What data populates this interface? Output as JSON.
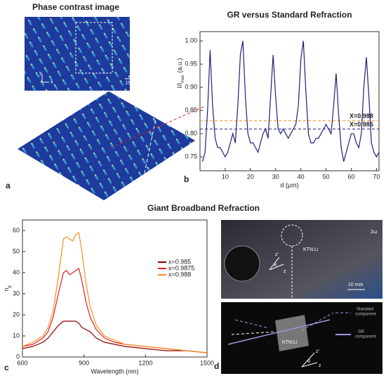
{
  "figure": {
    "panel_a": {
      "label": "a",
      "title": "Phase contrast image",
      "scale_bar": "15 μm",
      "axis_y": "y",
      "axis_x": "x"
    },
    "section_title": "Giant Broadband Refraction",
    "panel_d": {
      "label": "d",
      "sample": "KTN:Li",
      "harmonic": "2ω",
      "scale_bar": "10 mm",
      "axis_z": "z",
      "axis_zp": "z'",
      "angle": "θ",
      "standard_1": "Standard",
      "standard_2": "component",
      "gr_1": "GR",
      "gr_2": "component",
      "sample_2": "KTN:Li",
      "axis_z_2": "z",
      "axis_zp_2": "z'",
      "angle_2": "θ"
    }
  },
  "chart_data": [
    {
      "type": "line",
      "panel_label": "b",
      "title": "GR versus Standard Refraction",
      "x_label": "d (μm)",
      "y_label": "I/I",
      "y_label_sub": "max",
      "y_label_unit": "(a.u.)",
      "xlim": [
        0,
        71
      ],
      "ylim": [
        0.72,
        1.02
      ],
      "xticks": [
        10,
        20,
        30,
        40,
        50,
        60,
        70
      ],
      "yticks": [
        0.75,
        {
          "value": 0.8,
          "label": "0.80"
        },
        0.85,
        {
          "value": 0.9,
          "label": "0.90"
        },
        0.95,
        {
          "value": 1.0,
          "label": "1.00"
        }
      ],
      "x": [
        1,
        2,
        3,
        4,
        5,
        6,
        7,
        8,
        9,
        10,
        11,
        12,
        13,
        14,
        15,
        16,
        17,
        18,
        19,
        20,
        21,
        22,
        23,
        24,
        25,
        26,
        27,
        28,
        29,
        30,
        31,
        32,
        33,
        34,
        35,
        36,
        37,
        38,
        39,
        40,
        41,
        42,
        43,
        44,
        45,
        46,
        47,
        48,
        49,
        50,
        51,
        52,
        53,
        54,
        55,
        56,
        57,
        58,
        59,
        60,
        61,
        62,
        63,
        64,
        65,
        66,
        67,
        68,
        69,
        70,
        71
      ],
      "series": [
        {
          "color": "#1f1f7a",
          "values": [
            0.74,
            0.76,
            0.85,
            0.98,
            0.86,
            0.79,
            0.77,
            0.77,
            0.76,
            0.75,
            0.76,
            0.78,
            0.8,
            0.78,
            0.86,
            0.97,
            1.0,
            0.88,
            0.8,
            0.78,
            0.78,
            0.77,
            0.76,
            0.78,
            0.8,
            0.81,
            0.79,
            0.88,
            0.97,
            0.88,
            0.81,
            0.8,
            0.81,
            0.8,
            0.79,
            0.8,
            0.81,
            0.82,
            0.86,
            0.96,
            1.0,
            0.89,
            0.8,
            0.78,
            0.78,
            0.79,
            0.79,
            0.8,
            0.81,
            0.82,
            0.81,
            0.8,
            0.86,
            0.93,
            0.84,
            0.77,
            0.74,
            0.76,
            0.78,
            0.8,
            0.8,
            0.78,
            0.77,
            0.8,
            0.9,
            0.965,
            0.88,
            0.78,
            0.76,
            0.75,
            0.76
          ]
        }
      ],
      "reference_lines": [
        {
          "value": 0.828,
          "label": "X=0.988",
          "color": "#ff8c1a"
        },
        {
          "value": 0.81,
          "label": "X=0.985",
          "color": "#1f1f7a"
        }
      ]
    },
    {
      "type": "line",
      "panel_label": "c",
      "x_label": "Wavelength (nm)",
      "y_label": "n",
      "y_label_sub": "g",
      "xlim": [
        600,
        1500
      ],
      "ylim": [
        0,
        65
      ],
      "xticks": [
        600,
        900,
        1200,
        1500
      ],
      "yticks": [
        0,
        10,
        20,
        30,
        40,
        50,
        60
      ],
      "legend": "upper right",
      "x": [
        600,
        650,
        700,
        725,
        750,
        775,
        800,
        815,
        830,
        845,
        860,
        875,
        890,
        910,
        930,
        960,
        1000,
        1050,
        1100,
        1200,
        1300,
        1400,
        1500
      ],
      "series": [
        {
          "name": "x=0.985",
          "color": "#8b0000",
          "values": [
            4,
            5,
            7,
            9,
            12,
            15,
            17,
            17,
            17,
            17,
            17,
            16,
            14,
            13,
            12,
            9,
            7,
            6,
            5,
            4,
            3,
            3,
            2
          ]
        },
        {
          "name": "x=0.9875",
          "color": "#e0201b",
          "values": [
            5,
            6,
            9,
            12,
            19,
            30,
            40,
            41,
            39,
            40,
            41,
            42,
            36,
            26,
            19,
            13,
            9,
            7,
            6,
            5,
            4,
            3,
            2
          ]
        },
        {
          "name": "x=0.988",
          "color": "#f39020",
          "values": [
            5,
            7,
            10,
            14,
            22,
            38,
            56,
            57,
            56,
            55,
            58,
            59,
            50,
            35,
            24,
            15,
            10,
            8,
            6,
            5,
            4,
            3,
            2
          ]
        }
      ]
    }
  ]
}
